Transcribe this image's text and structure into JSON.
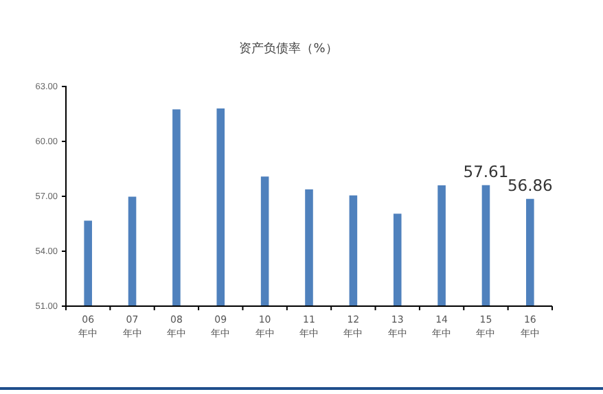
{
  "chart_data": {
    "type": "bar",
    "title": "资产负债率（%）",
    "categories": [
      "06\n年中",
      "07\n年中",
      "08\n年中",
      "09\n年中",
      "10\n年中",
      "11\n年中",
      "12\n年中",
      "13\n年中",
      "14\n年中",
      "15\n年中",
      "16\n年中"
    ],
    "values": [
      55.67,
      56.98,
      61.75,
      61.8,
      58.08,
      57.38,
      57.05,
      56.05,
      57.6,
      57.61,
      56.86
    ],
    "value_labels": [
      null,
      null,
      null,
      null,
      null,
      null,
      null,
      null,
      null,
      "57.61",
      "56.86"
    ],
    "color": "#4f81bd",
    "ylim": [
      51,
      63
    ],
    "yticks": [
      {
        "value": 51,
        "label": "51.00"
      },
      {
        "value": 54,
        "label": "54.00"
      },
      {
        "value": 57,
        "label": "57.00"
      },
      {
        "value": 60,
        "label": "60.00"
      },
      {
        "value": 63,
        "label": "63.00"
      }
    ],
    "grid": false
  }
}
